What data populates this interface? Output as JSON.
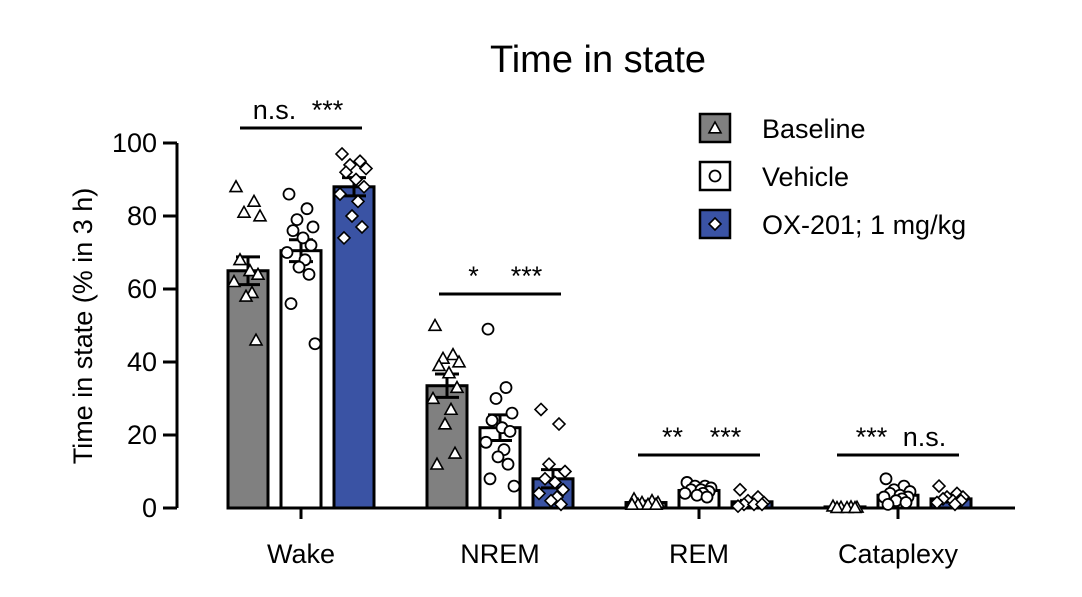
{
  "chart_data": {
    "type": "bar",
    "title": "Time in state",
    "ylabel": "Time in state (% in 3 h)",
    "xlabel": "",
    "ylim": [
      0,
      100
    ],
    "yticks": [
      0,
      20,
      40,
      60,
      80,
      100
    ],
    "grid": false,
    "legend_position": "top-right",
    "categories": [
      "Wake",
      "NREM",
      "REM",
      "Cataplexy"
    ],
    "series": [
      {
        "name": "Baseline",
        "color": "#808080",
        "marker": "triangle",
        "values": [
          65,
          33.5,
          1.5,
          0.3
        ],
        "sem": [
          3.8,
          3.2,
          0.4,
          0.1
        ],
        "points": [
          [
            88,
            84,
            81,
            80,
            68,
            65,
            64,
            62,
            59,
            58,
            46
          ],
          [
            50,
            42,
            41,
            40,
            39,
            37,
            33,
            30,
            27,
            23,
            15,
            12
          ],
          [
            2.5,
            2,
            1.5,
            1.5,
            1,
            1,
            1,
            1
          ],
          [
            0.5,
            0.3,
            0.2,
            0.2,
            0.1,
            0.1,
            0.1
          ]
        ]
      },
      {
        "name": "Vehicle",
        "color": "#ffffff",
        "marker": "circle",
        "values": [
          70.5,
          22,
          4.8,
          3.5
        ],
        "sem": [
          3.0,
          3.5,
          0.6,
          0.7
        ],
        "points": [
          [
            86,
            82,
            79,
            77,
            76,
            74,
            72,
            70,
            68,
            66,
            64,
            56,
            45
          ],
          [
            49,
            33,
            30,
            26,
            24,
            22,
            21,
            18,
            16,
            14,
            12,
            8,
            6
          ],
          [
            7,
            6,
            6,
            5.5,
            5,
            5,
            4.5,
            4,
            4,
            3.5,
            3
          ],
          [
            8,
            6,
            5,
            4.5,
            4,
            3.5,
            3,
            3,
            2.5,
            2,
            1.5,
            1
          ]
        ]
      },
      {
        "name": "OX-201; 1 mg/kg",
        "color": "#3a53a4",
        "marker": "diamond",
        "values": [
          88,
          8,
          1.7,
          2.5
        ],
        "sem": [
          2.5,
          2.5,
          0.4,
          0.4
        ],
        "points": [
          [
            97,
            95,
            94,
            93,
            92,
            90,
            88,
            86,
            84,
            80,
            77,
            74
          ],
          [
            27,
            23,
            12,
            10,
            8,
            7,
            5,
            4,
            3,
            2,
            1
          ],
          [
            5,
            3,
            2,
            1.5,
            1,
            1,
            1,
            0.5
          ],
          [
            6,
            4,
            3,
            3,
            2.5,
            2,
            2,
            1.5,
            1
          ]
        ]
      }
    ],
    "annotations": [
      {
        "category": "Wake",
        "pair": [
          0,
          1
        ],
        "label": "n.s."
      },
      {
        "category": "Wake",
        "pair": [
          1,
          2
        ],
        "label": "***"
      },
      {
        "category": "NREM",
        "pair": [
          0,
          1
        ],
        "label": "*"
      },
      {
        "category": "NREM",
        "pair": [
          1,
          2
        ],
        "label": "***"
      },
      {
        "category": "REM",
        "pair": [
          0,
          1
        ],
        "label": "**"
      },
      {
        "category": "REM",
        "pair": [
          1,
          2
        ],
        "label": "***"
      },
      {
        "category": "Cataplexy",
        "pair": [
          0,
          1
        ],
        "label": "***"
      },
      {
        "category": "Cataplexy",
        "pair": [
          1,
          2
        ],
        "label": "n.s."
      }
    ]
  }
}
